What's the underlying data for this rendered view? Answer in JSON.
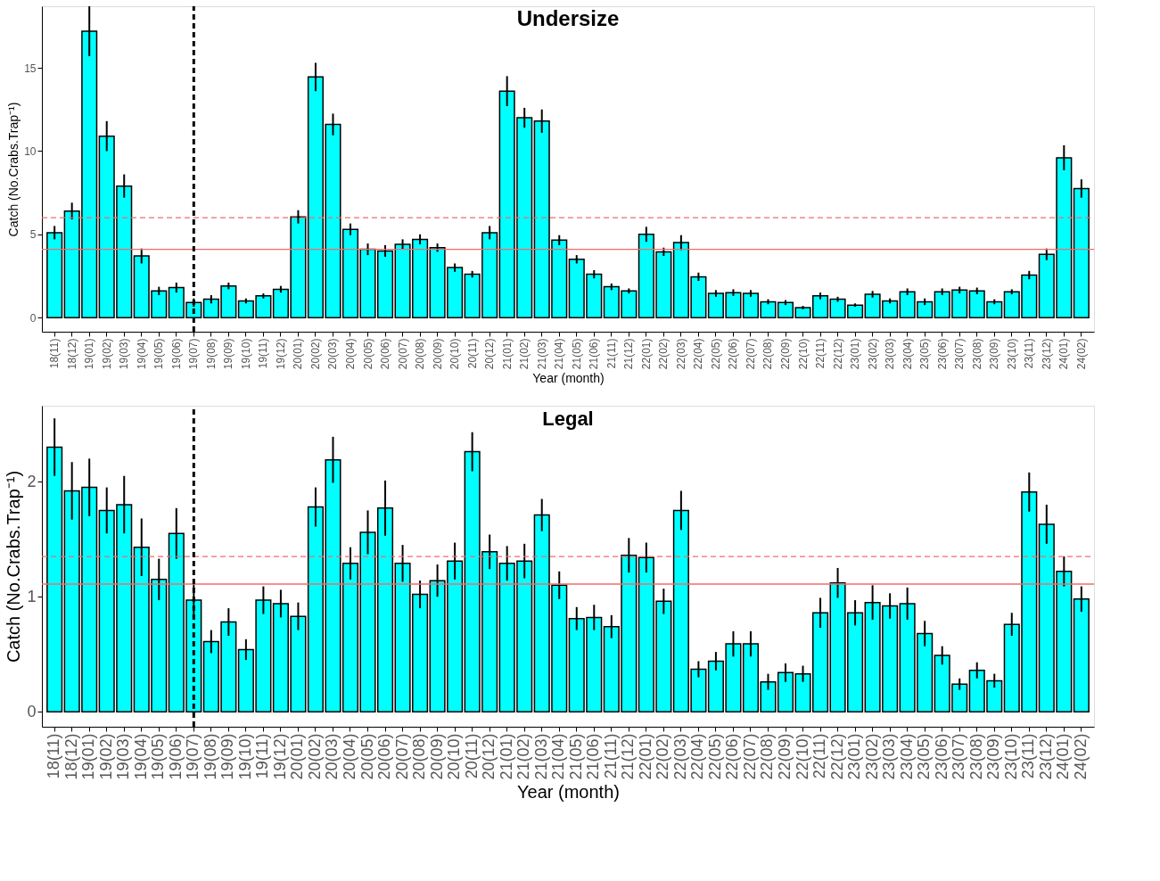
{
  "chart_data": [
    {
      "type": "bar",
      "title": "Undersize",
      "xlabel": "Year (month)",
      "ylabel": "Catch (No.Crabs.Trap⁻¹)",
      "categories": [
        "18(11)",
        "18(12)",
        "19(01)",
        "19(02)",
        "19(03)",
        "19(04)",
        "19(05)",
        "19(06)",
        "19(07)",
        "19(08)",
        "19(09)",
        "19(10)",
        "19(11)",
        "19(12)",
        "20(01)",
        "20(02)",
        "20(03)",
        "20(04)",
        "20(05)",
        "20(06)",
        "20(07)",
        "20(08)",
        "20(09)",
        "20(10)",
        "20(11)",
        "20(12)",
        "21(01)",
        "21(02)",
        "21(03)",
        "21(04)",
        "21(05)",
        "21(06)",
        "21(11)",
        "21(12)",
        "22(01)",
        "22(02)",
        "22(03)",
        "22(04)",
        "22(05)",
        "22(06)",
        "22(07)",
        "22(08)",
        "22(09)",
        "22(10)",
        "22(11)",
        "22(12)",
        "23(01)",
        "23(02)",
        "23(03)",
        "23(04)",
        "23(05)",
        "23(06)",
        "23(07)",
        "23(08)",
        "23(09)",
        "23(10)",
        "23(11)",
        "23(12)",
        "24(01)",
        "24(02)"
      ],
      "values": [
        5.1,
        6.4,
        17.2,
        10.9,
        7.9,
        3.7,
        1.6,
        1.8,
        0.9,
        1.1,
        1.9,
        1.0,
        1.3,
        1.7,
        6.05,
        14.45,
        11.6,
        5.3,
        4.1,
        4.0,
        4.4,
        4.7,
        4.2,
        3.0,
        2.6,
        5.1,
        13.6,
        12.0,
        11.8,
        4.65,
        3.5,
        2.6,
        1.85,
        1.6,
        5.0,
        3.95,
        4.5,
        2.45,
        1.45,
        1.5,
        1.45,
        0.95,
        0.9,
        0.6,
        1.3,
        1.1,
        0.75,
        1.4,
        1.0,
        1.55,
        0.95,
        1.55,
        1.65,
        1.6,
        0.95,
        1.55,
        2.55,
        3.8,
        9.6,
        7.75
      ],
      "errors": [
        0.4,
        0.5,
        1.5,
        0.9,
        0.7,
        0.45,
        0.25,
        0.3,
        0.25,
        0.25,
        0.2,
        0.15,
        0.15,
        0.2,
        0.4,
        0.85,
        0.65,
        0.35,
        0.35,
        0.35,
        0.3,
        0.3,
        0.25,
        0.25,
        0.2,
        0.4,
        0.9,
        0.6,
        0.7,
        0.3,
        0.25,
        0.25,
        0.2,
        0.15,
        0.45,
        0.25,
        0.45,
        0.25,
        0.2,
        0.2,
        0.2,
        0.15,
        0.15,
        0.1,
        0.2,
        0.15,
        0.1,
        0.2,
        0.15,
        0.2,
        0.2,
        0.2,
        0.2,
        0.2,
        0.15,
        0.15,
        0.25,
        0.35,
        0.75,
        0.55
      ],
      "color": "#00ffff",
      "ylim": [
        -0.85,
        18.7
      ],
      "yticks": [
        0,
        5,
        10,
        15
      ],
      "grid": false,
      "ref_lines": [
        {
          "axis": "y",
          "value": 4.1,
          "color": "#f26b6b",
          "line_style": "solid"
        },
        {
          "axis": "y",
          "value": 6.0,
          "color": "#f26b6b",
          "line_style": "dashed"
        },
        {
          "axis": "x",
          "value": "19(07)",
          "color": "#000000",
          "line_style": "dashed"
        }
      ]
    },
    {
      "type": "bar",
      "title": "Legal",
      "xlabel": "Year (month)",
      "ylabel": "Catch (No.Crabs.Trap⁻¹)",
      "categories": [
        "18(11)",
        "18(12)",
        "19(01)",
        "19(02)",
        "19(03)",
        "19(04)",
        "19(05)",
        "19(06)",
        "19(07)",
        "19(08)",
        "19(09)",
        "19(10)",
        "19(11)",
        "19(12)",
        "20(01)",
        "20(02)",
        "20(03)",
        "20(04)",
        "20(05)",
        "20(06)",
        "20(07)",
        "20(08)",
        "20(09)",
        "20(10)",
        "20(11)",
        "20(12)",
        "21(01)",
        "21(02)",
        "21(03)",
        "21(04)",
        "21(05)",
        "21(06)",
        "21(11)",
        "21(12)",
        "22(01)",
        "22(02)",
        "22(03)",
        "22(04)",
        "22(05)",
        "22(06)",
        "22(07)",
        "22(08)",
        "22(09)",
        "22(10)",
        "22(11)",
        "22(12)",
        "23(01)",
        "23(02)",
        "23(03)",
        "23(04)",
        "23(05)",
        "23(06)",
        "23(07)",
        "23(08)",
        "23(09)",
        "23(10)",
        "23(11)",
        "23(12)",
        "24(01)",
        "24(02)"
      ],
      "values": [
        2.3,
        1.92,
        1.95,
        1.75,
        1.8,
        1.43,
        1.15,
        1.55,
        0.97,
        0.61,
        0.78,
        0.54,
        0.97,
        0.94,
        0.83,
        1.78,
        2.19,
        1.29,
        1.56,
        1.77,
        1.29,
        1.02,
        1.14,
        1.31,
        2.26,
        1.39,
        1.29,
        1.31,
        1.71,
        1.1,
        0.81,
        0.82,
        0.74,
        1.36,
        1.34,
        0.96,
        1.75,
        0.37,
        0.44,
        0.59,
        0.59,
        0.26,
        0.34,
        0.33,
        0.86,
        1.12,
        0.86,
        0.95,
        0.92,
        0.94,
        0.68,
        0.49,
        0.24,
        0.36,
        0.27,
        0.76,
        1.91,
        1.63,
        1.22,
        0.98
      ],
      "errors": [
        0.25,
        0.25,
        0.25,
        0.2,
        0.25,
        0.25,
        0.18,
        0.22,
        0.17,
        0.1,
        0.12,
        0.09,
        0.12,
        0.12,
        0.12,
        0.17,
        0.2,
        0.14,
        0.19,
        0.24,
        0.16,
        0.12,
        0.14,
        0.16,
        0.17,
        0.15,
        0.15,
        0.15,
        0.14,
        0.12,
        0.1,
        0.11,
        0.1,
        0.15,
        0.13,
        0.11,
        0.17,
        0.07,
        0.08,
        0.11,
        0.11,
        0.07,
        0.08,
        0.07,
        0.13,
        0.13,
        0.11,
        0.15,
        0.11,
        0.14,
        0.11,
        0.08,
        0.05,
        0.07,
        0.06,
        0.1,
        0.17,
        0.17,
        0.13,
        0.11
      ],
      "color": "#00ffff",
      "ylim": [
        -0.13,
        2.66
      ],
      "yticks": [
        0,
        1,
        2
      ],
      "grid": false,
      "ref_lines": [
        {
          "axis": "y",
          "value": 1.11,
          "color": "#f26b6b",
          "line_style": "solid"
        },
        {
          "axis": "y",
          "value": 1.35,
          "color": "#f26b6b",
          "line_style": "dashed"
        },
        {
          "axis": "x",
          "value": "19(07)",
          "color": "#000000",
          "line_style": "dashed"
        }
      ]
    }
  ]
}
